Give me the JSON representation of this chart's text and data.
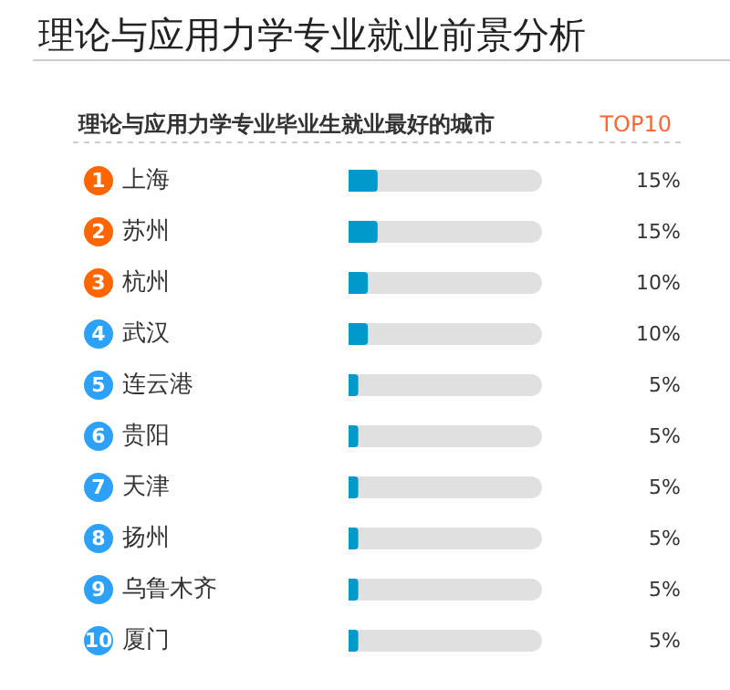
{
  "chart_data": {
    "type": "bar",
    "orientation": "horizontal",
    "title": "理论与应用力学专业就业前景分析",
    "subtitle": "理论与应用力学专业毕业生就业最好的城市",
    "annotations": [
      "TOP10",
      "1",
      "2",
      "3",
      "4",
      "5",
      "6",
      "7",
      "8",
      "9",
      "10"
    ],
    "categories": [
      "上海",
      "苏州",
      "杭州",
      "武汉",
      "连云港",
      "贵阳",
      "天津",
      "扬州",
      "乌鲁木齐",
      "厦门"
    ],
    "values": [
      15,
      15,
      10,
      10,
      5,
      5,
      5,
      5,
      5,
      5
    ],
    "color": "#0099cc",
    "value_labels": [
      "15%",
      "15%",
      "10%",
      "10%",
      "5%",
      "5%",
      "5%",
      "5%",
      "5%",
      "5%"
    ],
    "xlim": [
      0,
      100
    ],
    "tick_labels": "y",
    "grid": false
  }
}
